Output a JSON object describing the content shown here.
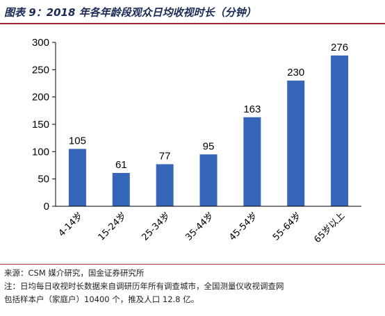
{
  "header": {
    "title": "图表 9：2018 年各年龄段观众日均收视时长（分钟）"
  },
  "chart_data": {
    "type": "bar",
    "categories": [
      "4-14岁",
      "15-24岁",
      "25-34岁",
      "35-44岁",
      "45-54岁",
      "55-64岁",
      "65岁以上"
    ],
    "values": [
      105,
      61,
      77,
      95,
      163,
      230,
      276
    ],
    "yticks": [
      0,
      50,
      100,
      150,
      200,
      250,
      300
    ],
    "ylim": [
      0,
      300
    ],
    "grid": false,
    "bar_color": "#3566b8",
    "title": "",
    "xlabel": "",
    "ylabel": ""
  },
  "footer": {
    "source": "来源：CSM 媒介研究，国金证券研究所",
    "note_line1": "注：日均每日收视时长数据来自调研历年所有调查城市，全国测量仪收视调查网",
    "note_line2": "包括样本户（家庭户）10400 个，推及人口 12.8 亿。"
  }
}
